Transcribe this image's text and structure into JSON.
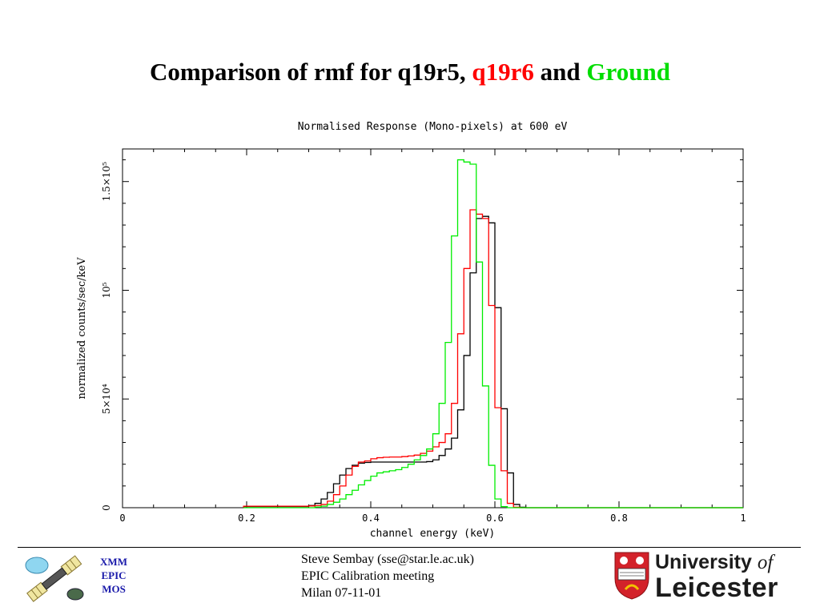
{
  "slide": {
    "title_part1": "Comparison of rmf for q19r5, ",
    "title_part2": "q19r6",
    "title_part3": " and ",
    "title_part4": "Ground"
  },
  "chart_data": {
    "type": "line",
    "title": "Normalised Response (Mono-pixels) at 600 eV",
    "xlabel": "channel energy (keV)",
    "ylabel": "normalized counts/sec/keV",
    "xlim": [
      0,
      1
    ],
    "ylim": [
      0,
      165000
    ],
    "x_ticks": [
      {
        "value": 0,
        "label": "0"
      },
      {
        "value": 0.2,
        "label": "0.2"
      },
      {
        "value": 0.4,
        "label": "0.4"
      },
      {
        "value": 0.6,
        "label": "0.6"
      },
      {
        "value": 0.8,
        "label": "0.8"
      },
      {
        "value": 1,
        "label": "1"
      }
    ],
    "y_ticks": [
      {
        "value": 0,
        "label": "0"
      },
      {
        "value": 50000,
        "label": "5×10⁴"
      },
      {
        "value": 100000,
        "label": "10⁵"
      },
      {
        "value": 150000,
        "label": "1.5×10⁵"
      }
    ],
    "bin_edges": [
      0.195,
      0.21,
      0.22,
      0.23,
      0.24,
      0.25,
      0.26,
      0.27,
      0.28,
      0.29,
      0.3,
      0.31,
      0.32,
      0.33,
      0.34,
      0.35,
      0.36,
      0.37,
      0.38,
      0.39,
      0.4,
      0.41,
      0.42,
      0.43,
      0.44,
      0.45,
      0.46,
      0.47,
      0.48,
      0.49,
      0.5,
      0.51,
      0.52,
      0.53,
      0.54,
      0.55,
      0.56,
      0.57,
      0.58,
      0.59,
      0.6,
      0.61,
      0.62,
      0.63,
      0.64,
      0.65,
      0.66,
      0.67,
      0.68
    ],
    "series": [
      {
        "color": "#000000",
        "values": [
          500,
          500,
          500,
          500,
          500,
          500,
          500,
          500,
          500,
          500,
          1000,
          2000,
          4000,
          7000,
          11000,
          15000,
          18000,
          19500,
          20500,
          20800,
          21000,
          21000,
          21000,
          21000,
          21000,
          21000,
          21000,
          21000,
          21000,
          21200,
          22000,
          24000,
          27000,
          32000,
          45000,
          70000,
          108000,
          133000,
          134000,
          131000,
          92000,
          45500,
          16000,
          1500,
          200,
          0,
          0,
          0
        ]
      },
      {
        "color": "#ff0000",
        "values": [
          700,
          700,
          700,
          700,
          700,
          700,
          700,
          700,
          700,
          700,
          800,
          1000,
          1500,
          3000,
          6000,
          10000,
          15000,
          19000,
          21000,
          21500,
          22500,
          23000,
          23200,
          23300,
          23300,
          23500,
          23800,
          24200,
          25000,
          26000,
          28000,
          30000,
          34000,
          48000,
          80000,
          110000,
          137000,
          135000,
          133000,
          93000,
          46000,
          17000,
          2000,
          200,
          0,
          0,
          0,
          0
        ]
      },
      {
        "color": "#00ee00",
        "values": [
          0,
          0,
          0,
          0,
          0,
          0,
          0,
          0,
          0,
          0,
          0,
          300,
          700,
          1500,
          2500,
          4000,
          6000,
          8000,
          10500,
          12500,
          14500,
          16000,
          16500,
          17000,
          17500,
          18500,
          20000,
          22000,
          24000,
          27000,
          34000,
          48000,
          76000,
          125000,
          160000,
          159000,
          158000,
          113000,
          56000,
          19500,
          4000,
          500,
          0,
          0,
          0,
          0,
          0,
          0
        ]
      }
    ]
  },
  "footer": {
    "xmm_lines": [
      "XMM",
      "EPIC",
      "MOS"
    ],
    "center_lines": [
      "Steve Sembay (sse@star.le.ac.uk)",
      "EPIC Calibration meeting",
      "Milan 07-11-01"
    ],
    "university_line1": "University ",
    "university_of": "of",
    "university_line2": "Leicester"
  }
}
